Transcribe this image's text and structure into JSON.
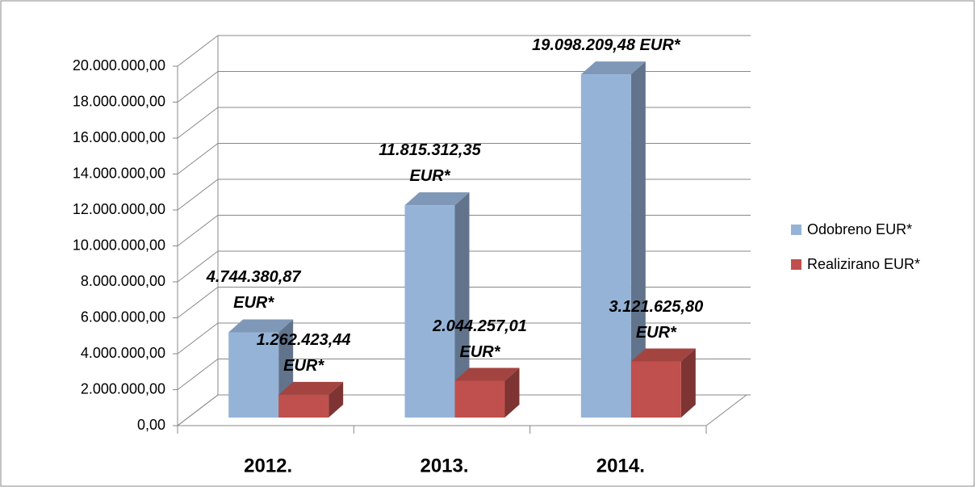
{
  "chart_data": {
    "type": "bar3d",
    "categories": [
      "2012.",
      "2013.",
      "2014."
    ],
    "series": [
      {
        "name": "Odobreno EUR*",
        "color": "#95b3d7",
        "values": [
          4744380.87,
          11815312.35,
          19098209.48
        ],
        "value_labels": [
          "4.744.380,87 EUR*",
          "11.815.312,35 EUR*",
          "19.098.209,48 EUR*"
        ]
      },
      {
        "name": "Realizirano EUR*",
        "color": "#c0504d",
        "values": [
          1262423.44,
          2044257.01,
          3121625.8
        ],
        "value_labels": [
          "1.262.423,44 EUR*",
          "2.044.257,01 EUR*",
          "3.121.625,80 EUR*"
        ]
      }
    ],
    "ylim": [
      0,
      20000000
    ],
    "yticks": [
      {
        "value": 0,
        "label": "0,00"
      },
      {
        "value": 2000000,
        "label": "2.000.000,00"
      },
      {
        "value": 4000000,
        "label": "4.000.000,00"
      },
      {
        "value": 6000000,
        "label": "6.000.000,00"
      },
      {
        "value": 8000000,
        "label": "8.000.000,00"
      },
      {
        "value": 10000000,
        "label": "10.000.000,00"
      },
      {
        "value": 12000000,
        "label": "12.000.000,00"
      },
      {
        "value": 14000000,
        "label": "14.000.000,00"
      },
      {
        "value": 16000000,
        "label": "16.000.000,00"
      },
      {
        "value": 18000000,
        "label": "18.000.000,00"
      },
      {
        "value": 20000000,
        "label": "20.000.000,00"
      }
    ],
    "grid": true,
    "legend": "right"
  }
}
